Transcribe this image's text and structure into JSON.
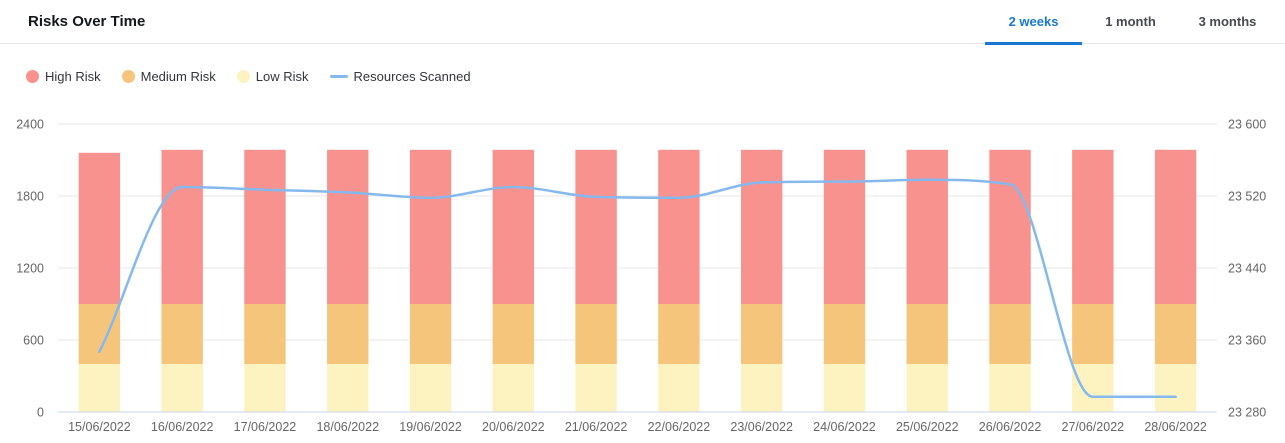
{
  "header": {
    "title": "Risks Over Time",
    "accent_color": "#1a78d2",
    "tabs": [
      {
        "label": "2 weeks",
        "active": true
      },
      {
        "label": "1 month",
        "active": false
      },
      {
        "label": "3 months",
        "active": false
      }
    ]
  },
  "legend": [
    {
      "label": "High Risk",
      "marker": "dot",
      "color": "#f8928f"
    },
    {
      "label": "Medium Risk",
      "marker": "dot",
      "color": "#f5c57c"
    },
    {
      "label": "Low Risk",
      "marker": "dot",
      "color": "#fcf3c0"
    },
    {
      "label": "Resources Scanned",
      "marker": "line",
      "color": "#85b9ee"
    }
  ],
  "chart_data": {
    "type": "bar",
    "subtype": "stacked-bars-with-line",
    "title": "Risks Over Time",
    "grid": "horizontal",
    "legend_position": "top-left",
    "categories": [
      "15/06/2022",
      "16/06/2022",
      "17/06/2022",
      "18/06/2022",
      "19/06/2022",
      "20/06/2022",
      "21/06/2022",
      "22/06/2022",
      "23/06/2022",
      "24/06/2022",
      "25/06/2022",
      "26/06/2022",
      "27/06/2022",
      "28/06/2022"
    ],
    "series": [
      {
        "name": "High Risk",
        "type": "bar",
        "stacked": true,
        "color": "#f8928f",
        "values": [
          1260,
          1285,
          1285,
          1285,
          1285,
          1285,
          1285,
          1285,
          1285,
          1285,
          1285,
          1285,
          1285,
          1285
        ]
      },
      {
        "name": "Medium Risk",
        "type": "bar",
        "stacked": true,
        "color": "#f5c57c",
        "values": [
          500,
          500,
          500,
          500,
          500,
          500,
          500,
          500,
          500,
          500,
          500,
          500,
          500,
          500
        ]
      },
      {
        "name": "Low Risk",
        "type": "bar",
        "stacked": true,
        "color": "#fcf3c0",
        "values": [
          400,
          400,
          400,
          400,
          400,
          400,
          400,
          400,
          400,
          400,
          400,
          400,
          400,
          400
        ]
      },
      {
        "name": "Resources Scanned",
        "type": "line",
        "axis": "right",
        "color": "#85b9ee",
        "values": [
          23347,
          23530,
          23527,
          23524,
          23518,
          23530,
          23519,
          23518,
          23535,
          23536,
          23538,
          23533,
          23297,
          23297
        ]
      }
    ],
    "left_axis": {
      "range": [
        0,
        2400
      ],
      "ticks": [
        0,
        600,
        1200,
        1800,
        2400
      ]
    },
    "right_axis": {
      "range": [
        23280,
        23600
      ],
      "ticks": [
        23280,
        23360,
        23440,
        23520,
        23600
      ],
      "tick_labels": [
        "23 280",
        "23 360",
        "23 440",
        "23 520",
        "23 600"
      ]
    },
    "colors": {
      "gridline": "#e7e7e7",
      "x_axis_line": "#ccd6eb",
      "axis_text": "#666666"
    }
  }
}
